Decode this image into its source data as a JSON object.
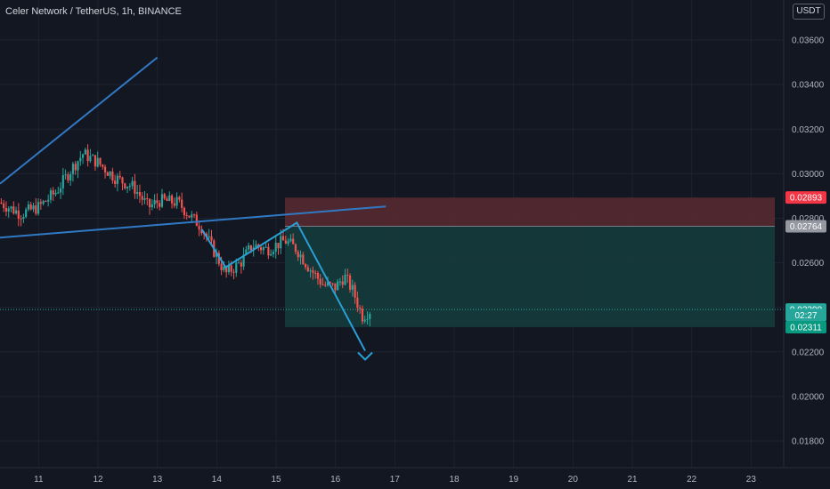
{
  "header": {
    "symbol_line": "Celer Network / TetherUS, 1h, BINANCE",
    "currency_button": "USDT"
  },
  "colors": {
    "background": "#131722",
    "grid": "#1f2330",
    "candle_up": "#26a69a",
    "candle_down": "#ef5350",
    "trend_line": "#3179c4",
    "zigzag_line": "#2a9fd6",
    "stop_zone": "#5b2a30",
    "target_zone": "#153b3c",
    "entry_line": "#787b86"
  },
  "chart_data": {
    "type": "candlestick",
    "y_axis": {
      "min": 0.0168,
      "max": 0.0378,
      "ticks": [
        "0.01800",
        "0.02000",
        "0.02200",
        "0.02400",
        "0.02600",
        "0.02800",
        "0.03000",
        "0.03200",
        "0.03400",
        "0.03600"
      ],
      "tick_values": [
        0.018,
        0.02,
        0.022,
        0.024,
        0.026,
        0.028,
        0.03,
        0.032,
        0.034,
        0.036
      ]
    },
    "x_axis": {
      "min": 10.35,
      "max": 23.55,
      "ticks": [
        "11",
        "12",
        "13",
        "14",
        "15",
        "16",
        "17",
        "18",
        "19",
        "20",
        "21",
        "22",
        "23"
      ],
      "tick_values": [
        11,
        12,
        13,
        14,
        15,
        16,
        17,
        18,
        19,
        20,
        21,
        22,
        23
      ]
    },
    "price_tags": [
      {
        "label": "0.02893",
        "value": 0.02893,
        "color": "#f23645"
      },
      {
        "label": "0.02764",
        "value": 0.02764,
        "color": "#9598a1"
      },
      {
        "label": "0.02390",
        "value": 0.0239,
        "color": "#26a69a"
      },
      {
        "label": "02:27",
        "value": 0.02365,
        "color": "#26a69a"
      },
      {
        "label": "0.02311",
        "value": 0.02311,
        "color": "#089981"
      }
    ],
    "position": {
      "start": 15.15,
      "end": 23.4,
      "stop": 0.02893,
      "entry": 0.02764,
      "target": 0.02311
    },
    "last_price": 0.0239,
    "trend_lines": [
      {
        "from": [
          10.35,
          0.02955
        ],
        "to": [
          13.0,
          0.03522
        ]
      },
      {
        "from": [
          10.35,
          0.02713
        ],
        "to": [
          16.85,
          0.02853
        ]
      }
    ],
    "zigzag": [
      [
        13.75,
        0.0275
      ],
      [
        14.15,
        0.0258
      ],
      [
        15.35,
        0.0278
      ],
      [
        16.5,
        0.02205
      ]
    ],
    "arrow_tip": [
      16.5,
      0.02165
    ],
    "anchors": [
      {
        "t": 10.35,
        "p": 0.0287
      },
      {
        "t": 10.7,
        "p": 0.0282
      },
      {
        "t": 11.0,
        "p": 0.0285
      },
      {
        "t": 11.3,
        "p": 0.0292
      },
      {
        "t": 11.55,
        "p": 0.0302
      },
      {
        "t": 11.75,
        "p": 0.0309
      },
      {
        "t": 12.0,
        "p": 0.0305
      },
      {
        "t": 12.3,
        "p": 0.0298
      },
      {
        "t": 12.6,
        "p": 0.0294
      },
      {
        "t": 12.85,
        "p": 0.0285
      },
      {
        "t": 13.05,
        "p": 0.0288
      },
      {
        "t": 13.35,
        "p": 0.0287
      },
      {
        "t": 13.55,
        "p": 0.0281
      },
      {
        "t": 13.75,
        "p": 0.0276
      },
      {
        "t": 13.9,
        "p": 0.0268
      },
      {
        "t": 14.15,
        "p": 0.0255
      },
      {
        "t": 14.4,
        "p": 0.026
      },
      {
        "t": 14.6,
        "p": 0.0268
      },
      {
        "t": 14.85,
        "p": 0.0266
      },
      {
        "t": 15.15,
        "p": 0.027
      },
      {
        "t": 15.35,
        "p": 0.0266
      },
      {
        "t": 15.55,
        "p": 0.0258
      },
      {
        "t": 15.8,
        "p": 0.025
      },
      {
        "t": 16.0,
        "p": 0.0249
      },
      {
        "t": 16.15,
        "p": 0.0254
      },
      {
        "t": 16.3,
        "p": 0.0247
      },
      {
        "t": 16.45,
        "p": 0.0236
      },
      {
        "t": 16.6,
        "p": 0.0239
      }
    ]
  }
}
